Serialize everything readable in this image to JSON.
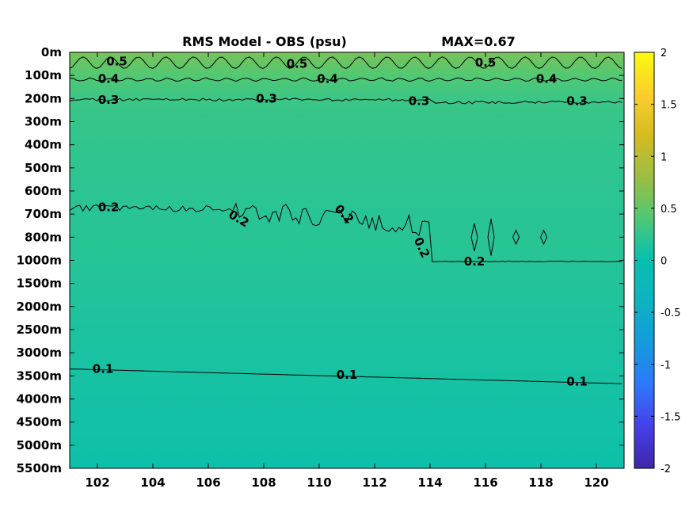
{
  "chart_data": {
    "type": "heatmap",
    "title": "RMS Model - OBS (psu)",
    "annotation": "MAX=0.67",
    "x": {
      "ticks": [
        102,
        104,
        106,
        108,
        110,
        112,
        114,
        116,
        118,
        120
      ],
      "tick_labels": [
        "102",
        "104",
        "106",
        "108",
        "110",
        "112",
        "114",
        "116",
        "118",
        "120"
      ],
      "range": [
        101,
        121
      ]
    },
    "y": {
      "tick_labels": [
        "0m",
        "100m",
        "200m",
        "300m",
        "400m",
        "500m",
        "600m",
        "700m",
        "800m",
        "1000m",
        "1500m",
        "2000m",
        "2500m",
        "3000m",
        "3500m",
        "4000m",
        "4500m",
        "5000m",
        "5500m"
      ]
    },
    "colorbar": {
      "range": [
        -2,
        2
      ],
      "ticks": [
        2,
        1.5,
        1,
        0.5,
        0,
        -0.5,
        -1,
        -1.5,
        -2
      ],
      "tick_labels": [
        "2",
        "1.5",
        "1",
        "0.5",
        "0",
        "-0.5",
        "-1",
        "-1.5",
        "-2"
      ],
      "colormap": "parula"
    },
    "field_profile": {
      "depth_level_index": [
        0,
        0.5,
        1,
        2,
        3,
        4,
        5,
        6,
        7,
        8,
        9,
        10,
        11,
        12,
        13,
        14,
        15,
        16,
        17,
        18
      ],
      "value": [
        0.62,
        0.52,
        0.42,
        0.3,
        0.27,
        0.25,
        0.23,
        0.22,
        0.2,
        0.2,
        0.19,
        0.17,
        0.15,
        0.13,
        0.11,
        0.1,
        0.09,
        0.07,
        0.06,
        0.05
      ]
    },
    "contours": [
      {
        "level": 0.5,
        "labels": [
          {
            "text": "0.5",
            "x": 102.7,
            "level_index": 0.4,
            "angle": 0
          },
          {
            "text": "0.5",
            "x": 109.2,
            "level_index": 0.5,
            "angle": 0
          },
          {
            "text": "0.5",
            "x": 116.0,
            "level_index": 0.45,
            "angle": 0
          }
        ]
      },
      {
        "level": 0.4,
        "labels": [
          {
            "text": "0.4",
            "x": 102.4,
            "level_index": 1.15,
            "angle": 0
          },
          {
            "text": "0.4",
            "x": 110.3,
            "level_index": 1.15,
            "angle": 0
          },
          {
            "text": "0.4",
            "x": 118.2,
            "level_index": 1.15,
            "angle": 0
          }
        ]
      },
      {
        "level": 0.3,
        "labels": [
          {
            "text": "0.3",
            "x": 102.4,
            "level_index": 2.05,
            "angle": 0
          },
          {
            "text": "0.3",
            "x": 108.1,
            "level_index": 2.0,
            "angle": 0
          },
          {
            "text": "0.3",
            "x": 113.6,
            "level_index": 2.1,
            "angle": 0
          },
          {
            "text": "0.3",
            "x": 119.3,
            "level_index": 2.1,
            "angle": 0
          }
        ]
      },
      {
        "level": 0.2,
        "labels": [
          {
            "text": "0.2",
            "x": 102.4,
            "level_index": 6.7,
            "angle": 0
          },
          {
            "text": "0.2",
            "x": 107.1,
            "level_index": 7.2,
            "angle": 30
          },
          {
            "text": "0.2",
            "x": 110.9,
            "level_index": 7.0,
            "angle": 45
          },
          {
            "text": "0.2",
            "x": 113.7,
            "level_index": 8.45,
            "angle": 65
          },
          {
            "text": "0.2",
            "x": 115.6,
            "level_index": 9.05,
            "angle": 0
          }
        ]
      },
      {
        "level": 0.1,
        "labels": [
          {
            "text": "0.1",
            "x": 102.2,
            "level_index": 13.7,
            "angle": 0
          },
          {
            "text": "0.1",
            "x": 111.0,
            "level_index": 13.95,
            "angle": 0
          },
          {
            "text": "0.1",
            "x": 119.3,
            "level_index": 14.25,
            "angle": 0
          }
        ]
      }
    ]
  },
  "colors": {
    "contour_line": "#000000",
    "frame": "#000000"
  }
}
